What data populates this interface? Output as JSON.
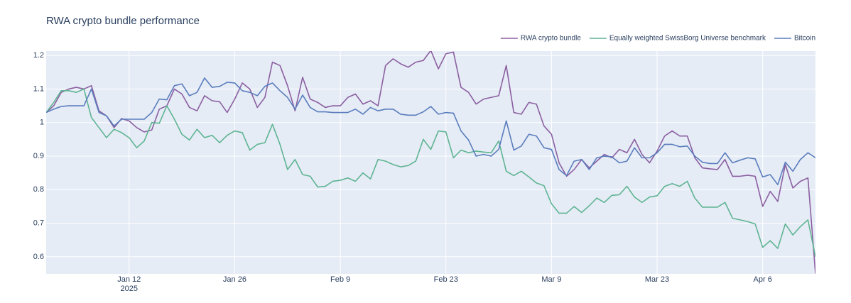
{
  "chart_data": {
    "type": "line",
    "title": "RWA crypto bundle performance",
    "x": [
      "2025-01-01",
      "2025-01-02",
      "2025-01-03",
      "2025-01-04",
      "2025-01-05",
      "2025-01-06",
      "2025-01-07",
      "2025-01-08",
      "2025-01-09",
      "2025-01-10",
      "2025-01-11",
      "2025-01-12",
      "2025-01-13",
      "2025-01-14",
      "2025-01-15",
      "2025-01-16",
      "2025-01-17",
      "2025-01-18",
      "2025-01-19",
      "2025-01-20",
      "2025-01-21",
      "2025-01-22",
      "2025-01-23",
      "2025-01-24",
      "2025-01-25",
      "2025-01-26",
      "2025-01-27",
      "2025-01-28",
      "2025-01-29",
      "2025-01-30",
      "2025-01-31",
      "2025-02-01",
      "2025-02-02",
      "2025-02-03",
      "2025-02-04",
      "2025-02-05",
      "2025-02-06",
      "2025-02-07",
      "2025-02-08",
      "2025-02-09",
      "2025-02-10",
      "2025-02-11",
      "2025-02-12",
      "2025-02-13",
      "2025-02-14",
      "2025-02-15",
      "2025-02-16",
      "2025-02-17",
      "2025-02-18",
      "2025-02-19",
      "2025-02-20",
      "2025-02-21",
      "2025-02-22",
      "2025-02-23",
      "2025-02-24",
      "2025-02-25",
      "2025-02-26",
      "2025-02-27",
      "2025-02-28",
      "2025-03-01",
      "2025-03-02",
      "2025-03-03",
      "2025-03-04",
      "2025-03-05",
      "2025-03-06",
      "2025-03-07",
      "2025-03-08",
      "2025-03-09",
      "2025-03-10",
      "2025-03-11",
      "2025-03-12",
      "2025-03-13",
      "2025-03-14",
      "2025-03-15",
      "2025-03-16",
      "2025-03-17",
      "2025-03-18",
      "2025-03-19",
      "2025-03-20",
      "2025-03-21",
      "2025-03-22",
      "2025-03-23",
      "2025-03-24",
      "2025-03-25",
      "2025-03-26",
      "2025-03-27",
      "2025-03-28",
      "2025-03-29",
      "2025-03-30",
      "2025-03-31",
      "2025-04-01",
      "2025-04-02",
      "2025-04-03",
      "2025-04-04",
      "2025-04-05",
      "2025-04-06",
      "2025-04-07",
      "2025-04-08",
      "2025-04-09",
      "2025-04-10",
      "2025-04-11",
      "2025-04-12",
      "2025-04-13"
    ],
    "series": [
      {
        "name": "RWA crypto bundle",
        "color": "#8b5fa0",
        "values": [
          1.03,
          1.05,
          1.09,
          1.1,
          1.105,
          1.1,
          1.11,
          1.035,
          1.02,
          0.985,
          1.012,
          1.005,
          0.985,
          0.972,
          0.978,
          1.04,
          1.05,
          1.1,
          1.085,
          1.045,
          1.035,
          1.08,
          1.065,
          1.062,
          1.03,
          1.07,
          1.118,
          1.1,
          1.045,
          1.075,
          1.18,
          1.17,
          1.11,
          1.035,
          1.135,
          1.07,
          1.06,
          1.045,
          1.05,
          1.05,
          1.075,
          1.085,
          1.055,
          1.065,
          1.05,
          1.17,
          1.19,
          1.175,
          1.165,
          1.18,
          1.185,
          1.215,
          1.16,
          1.205,
          1.21,
          1.105,
          1.09,
          1.055,
          1.07,
          1.075,
          1.08,
          1.17,
          1.03,
          1.025,
          1.06,
          1.055,
          0.99,
          0.965,
          0.88,
          0.84,
          0.86,
          0.89,
          0.865,
          0.885,
          0.905,
          0.895,
          0.92,
          0.91,
          0.95,
          0.905,
          0.88,
          0.915,
          0.96,
          0.975,
          0.96,
          0.96,
          0.895,
          0.865,
          0.862,
          0.86,
          0.89,
          0.84,
          0.84,
          0.843,
          0.84,
          0.75,
          0.795,
          0.765,
          0.875,
          0.805,
          0.825,
          0.835,
          0.55
        ]
      },
      {
        "name": "Equally weighted SwissBorg Universe benchmark",
        "color": "#5fb492",
        "values": [
          1.03,
          1.06,
          1.095,
          1.095,
          1.09,
          1.1,
          1.015,
          0.985,
          0.955,
          0.98,
          0.97,
          0.955,
          0.925,
          0.945,
          1.0,
          0.998,
          1.05,
          1.01,
          0.965,
          0.948,
          0.98,
          0.955,
          0.962,
          0.94,
          0.962,
          0.975,
          0.97,
          0.918,
          0.935,
          0.94,
          0.995,
          0.935,
          0.86,
          0.89,
          0.845,
          0.84,
          0.808,
          0.81,
          0.825,
          0.828,
          0.835,
          0.825,
          0.85,
          0.832,
          0.89,
          0.885,
          0.875,
          0.868,
          0.872,
          0.885,
          0.95,
          0.92,
          0.975,
          0.972,
          0.895,
          0.918,
          0.91,
          0.915,
          0.912,
          0.91,
          0.945,
          0.855,
          0.842,
          0.855,
          0.838,
          0.82,
          0.812,
          0.758,
          0.73,
          0.73,
          0.75,
          0.732,
          0.752,
          0.775,
          0.762,
          0.783,
          0.785,
          0.81,
          0.778,
          0.762,
          0.778,
          0.782,
          0.81,
          0.818,
          0.81,
          0.825,
          0.775,
          0.748,
          0.748,
          0.748,
          0.762,
          0.715,
          0.71,
          0.705,
          0.698,
          0.628,
          0.648,
          0.625,
          0.698,
          0.665,
          0.69,
          0.71,
          0.6
        ]
      },
      {
        "name": "Bitcoin",
        "color": "#5b7dbd",
        "values": [
          1.03,
          1.04,
          1.048,
          1.05,
          1.05,
          1.05,
          1.1,
          1.03,
          1.02,
          0.99,
          1.01,
          1.01,
          1.01,
          1.01,
          1.03,
          1.07,
          1.068,
          1.11,
          1.115,
          1.08,
          1.09,
          1.133,
          1.105,
          1.108,
          1.12,
          1.118,
          1.095,
          1.09,
          1.08,
          1.108,
          1.118,
          1.095,
          1.075,
          1.04,
          1.082,
          1.045,
          1.032,
          1.032,
          1.03,
          1.03,
          1.03,
          1.04,
          1.025,
          1.045,
          1.035,
          1.04,
          1.04,
          1.025,
          1.022,
          1.022,
          1.032,
          1.048,
          1.025,
          1.03,
          1.028,
          0.975,
          0.948,
          0.9,
          0.905,
          0.9,
          0.92,
          1.005,
          0.918,
          0.93,
          0.965,
          0.96,
          0.925,
          0.92,
          0.86,
          0.842,
          0.885,
          0.89,
          0.86,
          0.895,
          0.9,
          0.898,
          0.88,
          0.885,
          0.925,
          0.895,
          0.895,
          0.91,
          0.935,
          0.935,
          0.928,
          0.93,
          0.9,
          0.882,
          0.878,
          0.878,
          0.91,
          0.88,
          0.888,
          0.895,
          0.892,
          0.838,
          0.845,
          0.815,
          0.882,
          0.855,
          0.89,
          0.91,
          0.895
        ]
      }
    ],
    "xlim": [
      "2025-01-01",
      "2025-04-13"
    ],
    "xticks": [
      {
        "value": "2025-01-12",
        "label": "Jan 12",
        "sublabel": "2025"
      },
      {
        "value": "2025-01-26",
        "label": "Jan 26"
      },
      {
        "value": "2025-02-09",
        "label": "Feb 9"
      },
      {
        "value": "2025-02-23",
        "label": "Feb 23"
      },
      {
        "value": "2025-03-09",
        "label": "Mar 9"
      },
      {
        "value": "2025-03-23",
        "label": "Mar 23"
      },
      {
        "value": "2025-04-06",
        "label": "Apr 6"
      }
    ],
    "ylim": [
      0.549,
      1.213
    ],
    "yticks": [
      0.6,
      0.7,
      0.8,
      0.9,
      1,
      1.1,
      1.2
    ],
    "grid": true,
    "legend": "top-right"
  }
}
